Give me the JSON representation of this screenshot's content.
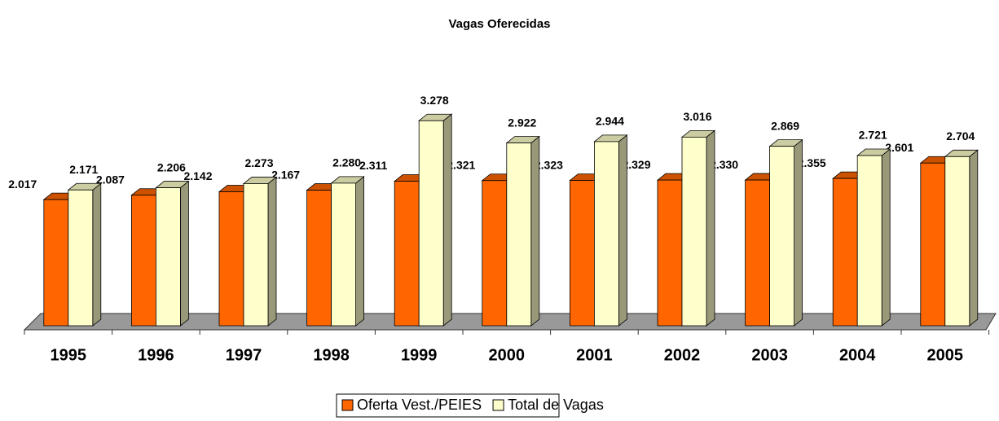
{
  "chart_data": {
    "type": "bar3d",
    "title": "Vagas Oferecidas",
    "categories": [
      "1995",
      "1996",
      "1997",
      "1998",
      "1999",
      "2000",
      "2001",
      "2002",
      "2003",
      "2004",
      "2005"
    ],
    "series": [
      {
        "name": "Oferta Vest./PEIES",
        "color": "#ff6600",
        "values": [
          2017,
          2087,
          2142,
          2167,
          2311,
          2321,
          2323,
          2329,
          2330,
          2355,
          2601
        ],
        "value_labels": [
          "2.017",
          "2.087",
          "2.142",
          "2.167",
          "2.311",
          "2.321",
          "2.323",
          "2.329",
          "2.330",
          "2.355",
          "2.601"
        ]
      },
      {
        "name": "Total de Vagas",
        "color": "#ffffcc",
        "values": [
          2171,
          2206,
          2273,
          2280,
          3278,
          2922,
          2944,
          3016,
          2869,
          2721,
          2704
        ],
        "value_labels": [
          "2.171",
          "2.206",
          "2.273",
          "2.280",
          "3.278",
          "2.922",
          "2.944",
          "3.016",
          "2.869",
          "2.721",
          "2.704"
        ]
      }
    ]
  }
}
